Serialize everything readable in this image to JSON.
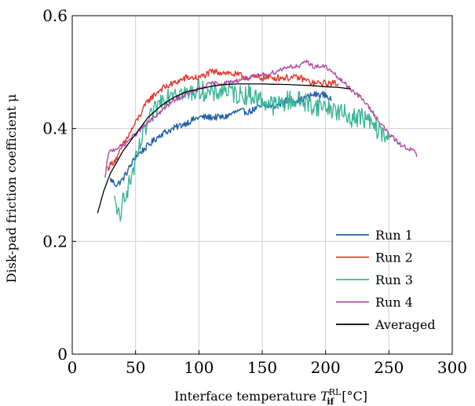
{
  "chart_data": {
    "type": "line",
    "xlabel": "Interface temperature",
    "xlabel_symbol": "T",
    "xlabel_superscript": "RL",
    "xlabel_subscript": "if",
    "xlabel_unit": "[°C]",
    "ylabel": "Disk-pad friction coefficient μ",
    "xlim": [
      0,
      300
    ],
    "ylim": [
      0,
      0.6
    ],
    "x_ticks": [
      0,
      50,
      100,
      150,
      200,
      250,
      300
    ],
    "x_tick_labels": [
      "0",
      "50",
      "100",
      "150",
      "200",
      "250",
      "300"
    ],
    "y_ticks": [
      0,
      0.2,
      0.4,
      0.6
    ],
    "y_tick_labels": [
      "0",
      "0.2",
      "0.4",
      "0.6"
    ],
    "grid": true,
    "legend_position": "bottom-right",
    "series": [
      {
        "name": "Run 1",
        "color": "#1f5fa6",
        "noise": 0.006,
        "x": [
          30,
          35,
          40,
          45,
          50,
          55,
          60,
          65,
          70,
          80,
          90,
          100,
          110,
          120,
          130,
          140,
          150,
          160,
          170,
          180,
          190,
          200,
          205
        ],
        "y": [
          0.31,
          0.3,
          0.31,
          0.33,
          0.35,
          0.36,
          0.37,
          0.38,
          0.39,
          0.4,
          0.41,
          0.42,
          0.42,
          0.42,
          0.43,
          0.43,
          0.44,
          0.44,
          0.45,
          0.45,
          0.46,
          0.46,
          0.45
        ]
      },
      {
        "name": "Run 2",
        "color": "#e03a2a",
        "noise": 0.006,
        "x": [
          28,
          32,
          36,
          40,
          45,
          50,
          55,
          60,
          70,
          80,
          90,
          100,
          110,
          120,
          140,
          160,
          180,
          190,
          200,
          205,
          210
        ],
        "y": [
          0.33,
          0.34,
          0.35,
          0.37,
          0.39,
          0.41,
          0.43,
          0.45,
          0.47,
          0.48,
          0.49,
          0.49,
          0.5,
          0.5,
          0.49,
          0.49,
          0.49,
          0.48,
          0.48,
          0.48,
          0.48
        ]
      },
      {
        "name": "Run 3",
        "color": "#3cb597",
        "noise": 0.018,
        "x": [
          33,
          36,
          38,
          40,
          45,
          50,
          55,
          60,
          65,
          70,
          80,
          90,
          100,
          110,
          120,
          130,
          140,
          150,
          160,
          170,
          180,
          190,
          200,
          210,
          220,
          230,
          240,
          250
        ],
        "y": [
          0.27,
          0.26,
          0.22,
          0.28,
          0.3,
          0.34,
          0.38,
          0.41,
          0.43,
          0.45,
          0.47,
          0.46,
          0.47,
          0.46,
          0.47,
          0.46,
          0.46,
          0.45,
          0.44,
          0.45,
          0.45,
          0.44,
          0.44,
          0.43,
          0.42,
          0.42,
          0.4,
          0.38
        ]
      },
      {
        "name": "Run 4",
        "color": "#b24aa8",
        "noise": 0.004,
        "x": [
          26,
          28,
          30,
          40,
          50,
          60,
          70,
          80,
          90,
          100,
          110,
          120,
          140,
          160,
          170,
          180,
          185,
          190,
          200,
          210,
          220,
          230,
          240,
          250,
          260,
          270,
          272
        ],
        "y": [
          0.31,
          0.35,
          0.36,
          0.37,
          0.39,
          0.41,
          0.43,
          0.45,
          0.46,
          0.47,
          0.48,
          0.48,
          0.49,
          0.5,
          0.51,
          0.51,
          0.52,
          0.51,
          0.51,
          0.49,
          0.47,
          0.45,
          0.42,
          0.39,
          0.37,
          0.36,
          0.35
        ]
      },
      {
        "name": "Averaged",
        "color": "#000000",
        "noise": 0,
        "x": [
          20,
          25,
          30,
          40,
          50,
          60,
          70,
          80,
          90,
          100,
          110,
          120,
          130,
          150,
          170,
          190,
          200,
          210,
          220
        ],
        "y": [
          0.25,
          0.29,
          0.32,
          0.36,
          0.39,
          0.42,
          0.44,
          0.455,
          0.465,
          0.47,
          0.475,
          0.478,
          0.479,
          0.479,
          0.478,
          0.476,
          0.474,
          0.473,
          0.47
        ]
      }
    ]
  }
}
